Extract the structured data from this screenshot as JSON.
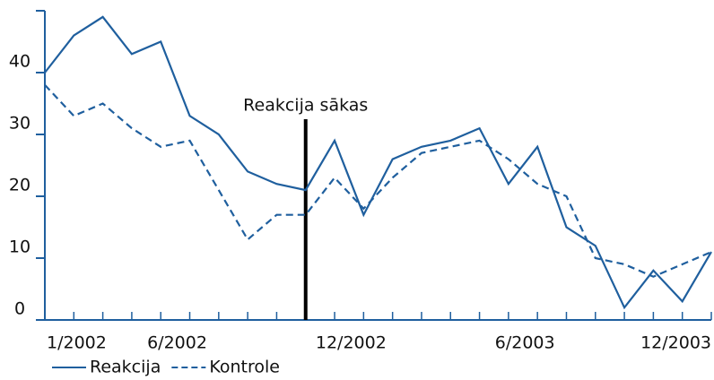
{
  "chart_data": {
    "type": "line",
    "categories": [
      "1/2002",
      null,
      null,
      null,
      null,
      "6/2002",
      null,
      null,
      null,
      null,
      null,
      "12/2002",
      null,
      null,
      null,
      null,
      null,
      "6/2003",
      null,
      null,
      null,
      null,
      null,
      "12/2003"
    ],
    "series": [
      {
        "name": "Reakcija",
        "color": "#1f5f9e",
        "dash": "solid",
        "values": [
          40,
          46,
          49,
          43,
          45,
          33,
          30,
          24,
          22,
          21,
          29,
          17,
          26,
          28,
          29,
          31,
          22,
          28,
          15,
          12,
          2,
          8,
          3,
          11
        ]
      },
      {
        "name": "Kontrole",
        "color": "#1f5f9e",
        "dash": "dashed",
        "values": [
          38,
          33,
          35,
          31,
          28,
          29,
          21,
          13,
          17,
          17,
          23,
          18,
          23,
          27,
          28,
          29,
          26,
          22,
          20,
          10,
          9,
          7,
          9,
          11
        ]
      }
    ],
    "annotation": {
      "text": "Reakcija sākas",
      "x": 9
    },
    "ylim": [
      0,
      50
    ],
    "yticks": [
      0,
      10,
      20,
      30,
      40
    ],
    "legend": "bottom-left"
  }
}
